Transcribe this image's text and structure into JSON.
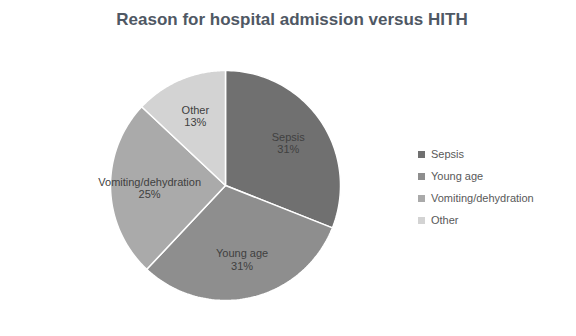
{
  "chart_data": {
    "type": "pie",
    "title": "Reason for hospital admission versus HITH",
    "categories": [
      "Sepsis",
      "Young age",
      "Vomiting/dehydration",
      "Other"
    ],
    "values": [
      31,
      31,
      25,
      13
    ],
    "value_labels": [
      "31%",
      "31%",
      "25%",
      "13%"
    ],
    "colors": [
      "#707070",
      "#8e8e8e",
      "#aaaaaa",
      "#d3d3d3"
    ],
    "data_labels": true,
    "legend": "right"
  }
}
